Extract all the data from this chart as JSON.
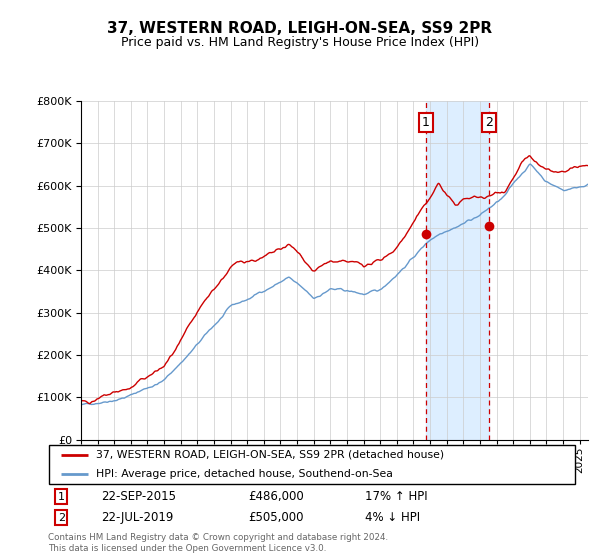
{
  "title": "37, WESTERN ROAD, LEIGH-ON-SEA, SS9 2PR",
  "subtitle": "Price paid vs. HM Land Registry's House Price Index (HPI)",
  "legend_line1": "37, WESTERN ROAD, LEIGH-ON-SEA, SS9 2PR (detached house)",
  "legend_line2": "HPI: Average price, detached house, Southend-on-Sea",
  "annotation1_date": "22-SEP-2015",
  "annotation1_price": "£486,000",
  "annotation1_hpi": "17% ↑ HPI",
  "annotation2_date": "22-JUL-2019",
  "annotation2_price": "£505,000",
  "annotation2_hpi": "4% ↓ HPI",
  "footer": "Contains HM Land Registry data © Crown copyright and database right 2024.\nThis data is licensed under the Open Government Licence v3.0.",
  "red_color": "#cc0000",
  "blue_color": "#6699cc",
  "shade_color": "#ddeeff",
  "ylim": [
    0,
    800000
  ],
  "yticks": [
    0,
    100000,
    200000,
    300000,
    400000,
    500000,
    600000,
    700000,
    800000
  ],
  "sale1_x": 2015.73,
  "sale1_y": 486000,
  "sale2_x": 2019.55,
  "sale2_y": 505000,
  "xmin": 1995,
  "xmax": 2025.5
}
